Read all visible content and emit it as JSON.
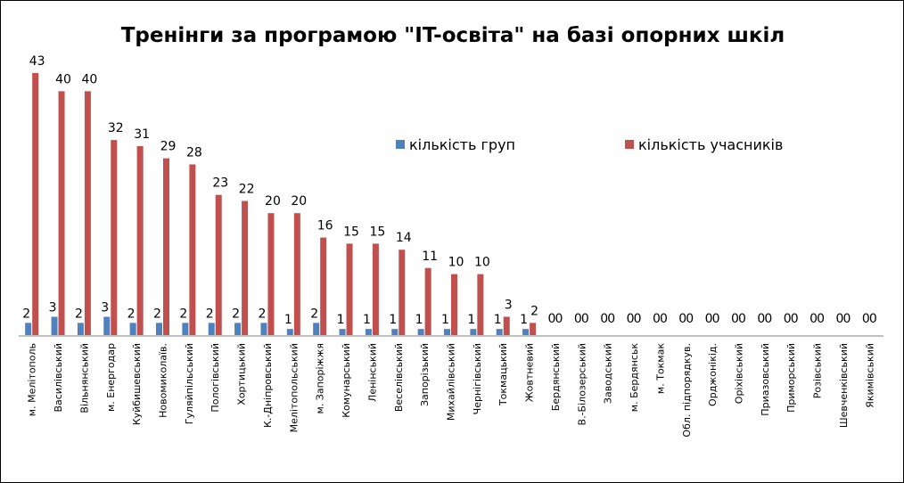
{
  "chart_data": {
    "type": "bar",
    "title": "Тренінги за програмою \"IT-освіта\"  на базі опорних шкіл",
    "xlabel": "",
    "ylabel": "",
    "ylim": [
      0,
      45
    ],
    "grid": false,
    "legend_position": "top-right",
    "categories": [
      "м. Мелітополь",
      "Василівський",
      "Вільнянський",
      "м. Енергодар",
      "Куйбишевський",
      "Новомиколаїв.",
      "Гуляйпільський",
      "Пологівський",
      "Хортицький",
      "К.-Дніпровський",
      "Мелітопольський",
      "м. Запоріжжя",
      "Комунарський",
      "Ленінський",
      "Веселівський",
      "Запорізький",
      "Михайлівський",
      "Чернігівський",
      "Токмацький",
      "Жовтневий",
      "Бердянський",
      "В.-Білозерський",
      "Заводський",
      "м. Бердянськ",
      "м. Токмак",
      "Обл. підпорядкув.",
      "Орджонікід.",
      "Оріхівський",
      "Приазовський",
      "Приморський",
      "Розівський",
      "Шевченківський",
      "Якимівський"
    ],
    "series": [
      {
        "name": "кількість груп",
        "color": "#4F81BD",
        "values": [
          2,
          3,
          2,
          3,
          2,
          2,
          2,
          2,
          2,
          2,
          1,
          2,
          1,
          1,
          1,
          1,
          1,
          1,
          1,
          1,
          0,
          0,
          0,
          0,
          0,
          0,
          0,
          0,
          0,
          0,
          0,
          0,
          0
        ]
      },
      {
        "name": "кількість учасників",
        "color": "#C0504D",
        "values": [
          43,
          40,
          40,
          32,
          31,
          29,
          28,
          23,
          22,
          20,
          20,
          16,
          15,
          15,
          14,
          11,
          10,
          10,
          3,
          2,
          0,
          0,
          0,
          0,
          0,
          0,
          0,
          0,
          0,
          0,
          0,
          0,
          0
        ]
      }
    ]
  }
}
